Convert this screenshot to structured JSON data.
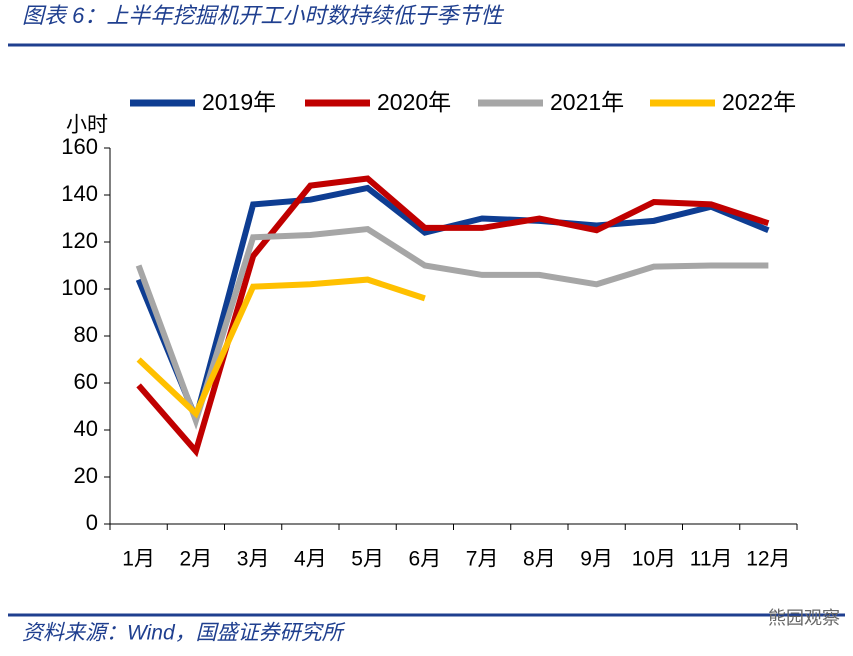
{
  "chart_data": {
    "type": "line",
    "title": "图表 6：上半年挖掘机开工小时数持续低于季节性",
    "y_label": "小时",
    "source": "资料来源：Wind，国盛证券研究所",
    "watermark": "熊园观察",
    "categories": [
      "1月",
      "2月",
      "3月",
      "4月",
      "5月",
      "6月",
      "7月",
      "8月",
      "9月",
      "10月",
      "11月",
      "12月"
    ],
    "series": [
      {
        "name": "2019年",
        "color": "#0e3d92",
        "values": [
          104,
          45,
          136,
          138,
          143,
          124,
          130,
          129,
          127,
          129,
          135,
          125
        ]
      },
      {
        "name": "2020年",
        "color": "#c00000",
        "values": [
          59,
          31,
          114,
          144,
          147,
          126,
          126,
          130,
          125,
          137,
          136,
          128
        ]
      },
      {
        "name": "2021年",
        "color": "#a6a6a6",
        "values": [
          110,
          44,
          122,
          123,
          125.5,
          110,
          106,
          106,
          102,
          109.5,
          110,
          110
        ]
      },
      {
        "name": "2022年",
        "color": "#ffc000",
        "values": [
          70,
          47,
          101,
          102,
          104,
          96,
          null,
          null,
          null,
          null,
          null,
          null
        ]
      }
    ],
    "ylim": [
      0,
      160
    ],
    "yticks": [
      0,
      20,
      40,
      60,
      80,
      100,
      120,
      140,
      160
    ],
    "grid": false,
    "legend": "top"
  }
}
